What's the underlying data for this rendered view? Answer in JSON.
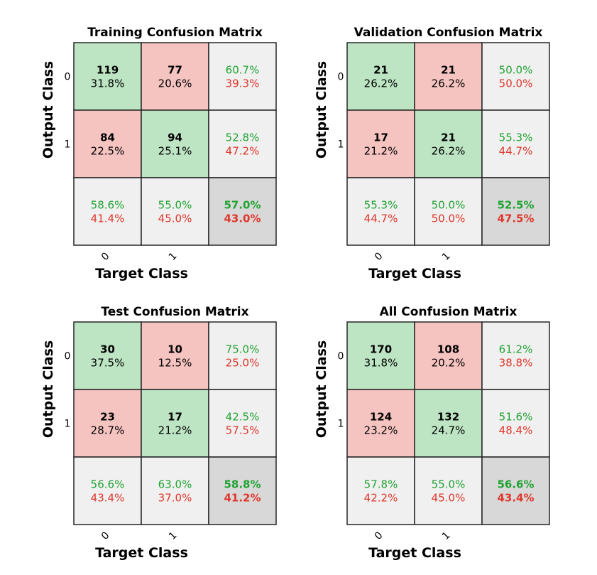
{
  "chart_data": [
    {
      "type": "heatmap",
      "title": "Training Confusion Matrix",
      "xlabel": "Target Class",
      "ylabel": "Output Class",
      "class_labels": [
        "0",
        "1"
      ],
      "counts": [
        [
          119,
          77
        ],
        [
          84,
          94
        ]
      ],
      "cell_percents": [
        [
          "31.8%",
          "20.6%"
        ],
        [
          "22.5%",
          "25.1%"
        ]
      ],
      "row_summary": [
        [
          "60.7%",
          "39.3%"
        ],
        [
          "52.8%",
          "47.2%"
        ]
      ],
      "col_summary": [
        [
          "58.6%",
          "41.4%"
        ],
        [
          "55.0%",
          "45.0%"
        ]
      ],
      "overall": [
        "57.0%",
        "43.0%"
      ]
    },
    {
      "type": "heatmap",
      "title": "Validation Confusion Matrix",
      "xlabel": "Target Class",
      "ylabel": "Output Class",
      "class_labels": [
        "0",
        "1"
      ],
      "counts": [
        [
          21,
          21
        ],
        [
          17,
          21
        ]
      ],
      "cell_percents": [
        [
          "26.2%",
          "26.2%"
        ],
        [
          "21.2%",
          "26.2%"
        ]
      ],
      "row_summary": [
        [
          "50.0%",
          "50.0%"
        ],
        [
          "55.3%",
          "44.7%"
        ]
      ],
      "col_summary": [
        [
          "55.3%",
          "44.7%"
        ],
        [
          "50.0%",
          "50.0%"
        ]
      ],
      "overall": [
        "52.5%",
        "47.5%"
      ]
    },
    {
      "type": "heatmap",
      "title": "Test Confusion Matrix",
      "xlabel": "Target Class",
      "ylabel": "Output Class",
      "class_labels": [
        "0",
        "1"
      ],
      "counts": [
        [
          30,
          10
        ],
        [
          23,
          17
        ]
      ],
      "cell_percents": [
        [
          "37.5%",
          "12.5%"
        ],
        [
          "28.7%",
          "21.2%"
        ]
      ],
      "row_summary": [
        [
          "75.0%",
          "25.0%"
        ],
        [
          "42.5%",
          "57.5%"
        ]
      ],
      "col_summary": [
        [
          "56.6%",
          "43.4%"
        ],
        [
          "63.0%",
          "37.0%"
        ]
      ],
      "overall": [
        "58.8%",
        "41.2%"
      ]
    },
    {
      "type": "heatmap",
      "title": "All Confusion Matrix",
      "xlabel": "Target Class",
      "ylabel": "Output Class",
      "class_labels": [
        "0",
        "1"
      ],
      "counts": [
        [
          170,
          108
        ],
        [
          124,
          132
        ]
      ],
      "cell_percents": [
        [
          "31.8%",
          "20.2%"
        ],
        [
          "23.2%",
          "24.7%"
        ]
      ],
      "row_summary": [
        [
          "61.2%",
          "38.8%"
        ],
        [
          "51.6%",
          "48.4%"
        ]
      ],
      "col_summary": [
        [
          "57.8%",
          "42.2%"
        ],
        [
          "55.0%",
          "45.0%"
        ]
      ],
      "overall": [
        "56.6%",
        "43.4%"
      ]
    }
  ],
  "colors": {
    "correct_cell": "#bde5c3",
    "incorrect_cell": "#f5c3c0",
    "summary_cell": "#f0f0f0",
    "overall_cell": "#d8d8d8",
    "good_text": "#1fa331",
    "bad_text": "#e0362b",
    "text": "#000000",
    "grid": "#262626"
  }
}
